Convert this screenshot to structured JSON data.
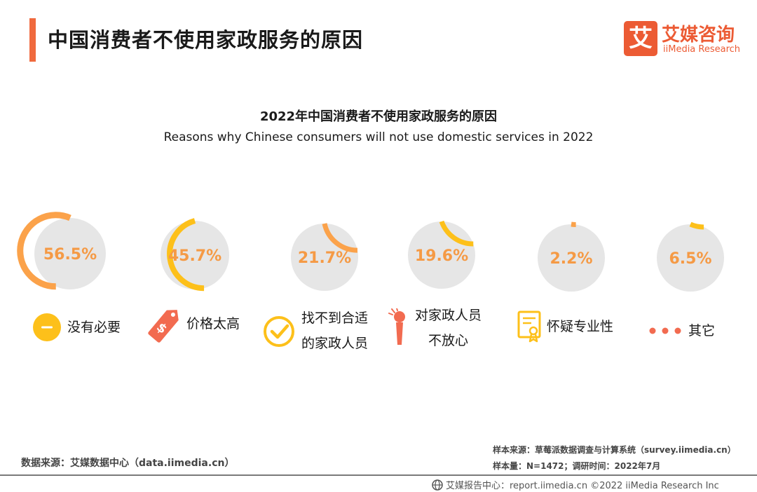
{
  "header": {
    "title": "中国消费者不使用家政服务的原因",
    "logo_glyph": "艾",
    "logo_cn": "艾媒咨询",
    "logo_en": "iiMedia Research"
  },
  "chart_data": {
    "type": "gauge",
    "title": "2022年中国消费者不使用家政服务的原因",
    "subtitle": "Reasons why Chinese consumers will not use domestic services in 2022",
    "categories": [
      "没有必要",
      "价格太高",
      "找不到合适的家政人员",
      "对家政人员不放心",
      "怀疑专业性",
      "其它"
    ],
    "values": [
      0.565,
      0.457,
      0.217,
      0.196,
      0.022,
      0.065
    ],
    "value_labels": [
      "56.5%",
      "45.7%",
      "21.7%",
      "19.6%",
      "2.2%",
      "6.5%"
    ],
    "colors": {
      "track": "#e6e6e6",
      "orange": "#fba24a",
      "yellow": "#fdc01a",
      "label_orange": "#f59a45",
      "icon_red": "#f26b50"
    }
  },
  "labels": {
    "c1": "没有必要",
    "c2": "价格太高",
    "c3_l1": "找不到合适",
    "c3_l2": "的家政人员",
    "c4_l1": "对家政人员",
    "c4_l2": "不放心",
    "c5": "怀疑专业性",
    "c6": "其它"
  },
  "icons": [
    "minus-circle-icon",
    "price-tag-icon",
    "check-circle-icon",
    "worried-person-icon",
    "certificate-icon",
    "dots-icon"
  ],
  "sources": {
    "left": "数据来源：艾媒数据中心（data.iimedia.cn）",
    "right_1": "样本来源：草莓派数据调查与计算系统（survey.iimedia.cn）",
    "right_2": "样本量：N=1472；调研时间：2022年7月"
  },
  "footer": {
    "text": "艾媒报告中心：report.iimedia.cn   ©2022  iiMedia Research  Inc"
  }
}
